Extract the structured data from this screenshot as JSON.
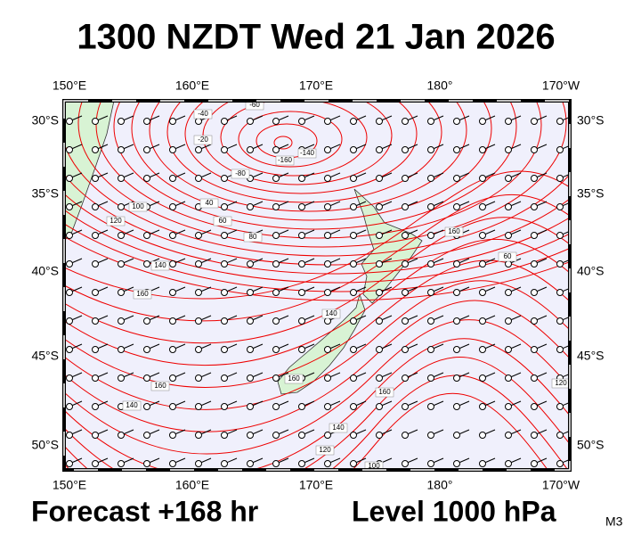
{
  "title": "1300 NZDT Wed 21 Jan 2026",
  "longitude_labels": [
    "150°E",
    "160°E",
    "170°E",
    "180°",
    "170°W"
  ],
  "latitude_labels": [
    "30°S",
    "35°S",
    "40°S",
    "45°S",
    "50°S"
  ],
  "footer": {
    "forecast": "Forecast +168 hr",
    "level": "Level 1000 hPa",
    "model": "M3"
  },
  "contour_labels": [
    "-40",
    "-60",
    "-20",
    "-160",
    "-140",
    "-80",
    "40",
    "60",
    "80",
    "100",
    "120",
    "140",
    "160",
    "160",
    "60",
    "160",
    "140",
    "120",
    "100",
    "140",
    "140",
    "160",
    "160",
    "120"
  ]
}
